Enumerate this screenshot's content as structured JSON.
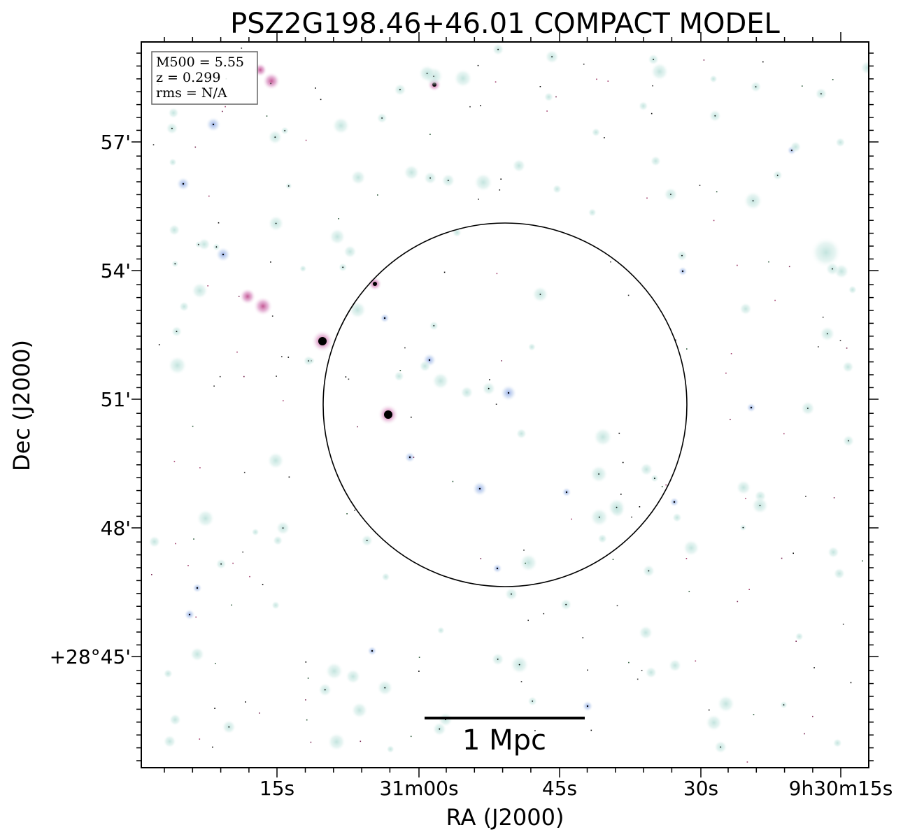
{
  "title": "PSZ2G198.46+46.01 COMPACT MODEL",
  "info_box": {
    "m500": "M500 = 5.55",
    "z": "z = 0.299",
    "rms": "rms = N/A"
  },
  "scale_bar": {
    "label": "1 Mpc"
  },
  "x_axis": {
    "label": "RA (J2000)",
    "tick_labels": [
      "15s",
      "31m00s",
      "45s",
      "30s",
      "9h30m15s"
    ]
  },
  "y_axis": {
    "label": "Dec (J2000)",
    "tick_labels": [
      "57'",
      "54'",
      "51'",
      "48'",
      "+28°45'"
    ]
  },
  "colors": {
    "background": "#ffffff",
    "halo": "#cfe9e4",
    "halo_blue": "#b9cfee",
    "halo_pink": "#e7a9cf",
    "core_dark": "#000000",
    "circle_stroke": "#000000"
  }
}
